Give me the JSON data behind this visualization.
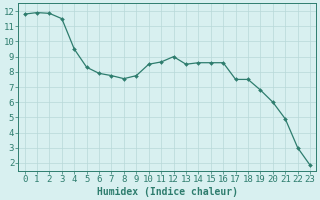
{
  "x": [
    0,
    1,
    2,
    3,
    4,
    5,
    6,
    7,
    8,
    9,
    10,
    11,
    12,
    13,
    14,
    15,
    16,
    17,
    18,
    19,
    20,
    21,
    22,
    23
  ],
  "y": [
    11.8,
    11.9,
    11.85,
    11.5,
    9.5,
    8.3,
    7.9,
    7.75,
    7.55,
    7.75,
    8.5,
    8.65,
    9.0,
    8.5,
    8.6,
    8.6,
    8.6,
    7.5,
    7.5,
    6.8,
    6.0,
    4.9,
    3.0,
    1.85
  ],
  "line_color": "#2e7d6e",
  "marker": "D",
  "marker_size": 2.0,
  "background_color": "#d8f0f0",
  "grid_color": "#b8d8d8",
  "xlabel": "Humidex (Indice chaleur)",
  "xlim": [
    -0.5,
    23.5
  ],
  "ylim": [
    1.5,
    12.5
  ],
  "xticks": [
    0,
    1,
    2,
    3,
    4,
    5,
    6,
    7,
    8,
    9,
    10,
    11,
    12,
    13,
    14,
    15,
    16,
    17,
    18,
    19,
    20,
    21,
    22,
    23
  ],
  "yticks": [
    2,
    3,
    4,
    5,
    6,
    7,
    8,
    9,
    10,
    11,
    12
  ],
  "xlabel_fontsize": 7,
  "tick_fontsize": 6.5,
  "tick_color": "#2e7d6e",
  "axis_color": "#2e7d6e",
  "linewidth": 0.9
}
